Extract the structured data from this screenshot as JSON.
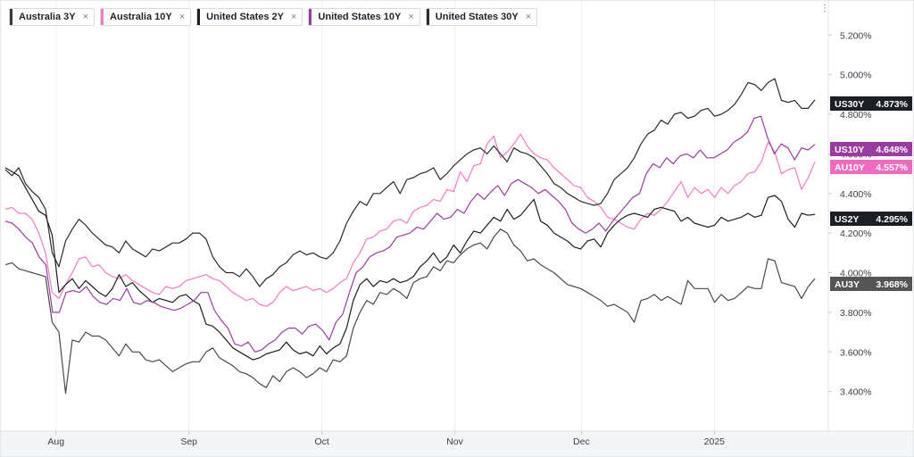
{
  "legend": [
    {
      "label": "Australia 3Y",
      "color": "#3a3a3a"
    },
    {
      "label": "Australia 10Y",
      "color": "#f07cc6"
    },
    {
      "label": "United States 2Y",
      "color": "#1e1e1e"
    },
    {
      "label": "United States 10Y",
      "color": "#9a3fa0"
    },
    {
      "label": "United States 30Y",
      "color": "#2b2b2b"
    }
  ],
  "legend_close_glyph": "×",
  "icons": {
    "legend_close": "close-icon",
    "menu": "vertical-dots-icon"
  },
  "chart_data": {
    "type": "line",
    "x_tick_labels": [
      "Aug",
      "Sep",
      "Oct",
      "Nov",
      "Dec",
      "2025"
    ],
    "x_tick_positions": [
      8,
      29,
      50,
      71,
      91,
      112
    ],
    "x_range": [
      0,
      130
    ],
    "ylim": [
      3.2,
      5.35
    ],
    "y_ticks": [
      3.4,
      3.6,
      3.8,
      4.0,
      4.2,
      4.4,
      4.6,
      4.8,
      5.0,
      5.2
    ],
    "y_tick_labels": [
      "3.400%",
      "3.600%",
      "3.800%",
      "4.000%",
      "4.200%",
      "4.400%",
      "4.600%",
      "4.800%",
      "5.000%",
      "5.200%"
    ],
    "grid": "vertical",
    "series": [
      {
        "name": "Australia 3Y",
        "tag": "AU3Y",
        "last": "3.968%",
        "color": "#4a4a4a",
        "tag_bg": "#555555",
        "values": [
          4.04,
          4.05,
          4.02,
          4.01,
          4.0,
          3.99,
          3.98,
          3.75,
          3.7,
          3.39,
          3.66,
          3.65,
          3.7,
          3.68,
          3.68,
          3.66,
          3.62,
          3.58,
          3.64,
          3.6,
          3.6,
          3.56,
          3.55,
          3.56,
          3.53,
          3.5,
          3.52,
          3.54,
          3.55,
          3.55,
          3.6,
          3.62,
          3.57,
          3.55,
          3.53,
          3.5,
          3.49,
          3.47,
          3.44,
          3.42,
          3.48,
          3.45,
          3.5,
          3.52,
          3.5,
          3.47,
          3.49,
          3.52,
          3.5,
          3.56,
          3.55,
          3.58,
          3.72,
          3.8,
          3.86,
          3.84,
          3.9,
          3.89,
          3.92,
          3.9,
          3.87,
          3.95,
          3.97,
          3.98,
          4.03,
          4.01,
          4.06,
          4.05,
          4.09,
          4.12,
          4.14,
          4.15,
          4.12,
          4.18,
          4.22,
          4.2,
          4.14,
          4.11,
          4.06,
          4.07,
          4.04,
          4.02,
          4.0,
          3.97,
          3.94,
          3.93,
          3.92,
          3.9,
          3.88,
          3.86,
          3.83,
          3.84,
          3.82,
          3.8,
          3.75,
          3.86,
          3.87,
          3.89,
          3.86,
          3.88,
          3.86,
          3.84,
          3.96,
          3.92,
          3.92,
          3.92,
          3.85,
          3.89,
          3.86,
          3.87,
          3.9,
          3.93,
          3.92,
          3.92,
          4.07,
          4.06,
          3.95,
          3.94,
          3.93,
          3.87,
          3.93,
          3.97
        ]
      },
      {
        "name": "Australia 10Y",
        "tag": "AU10Y",
        "last": "4.557%",
        "color": "#f07cc6",
        "tag_bg": "#f06abf",
        "values": [
          4.32,
          4.33,
          4.3,
          4.3,
          4.27,
          4.2,
          4.1,
          3.9,
          3.87,
          3.94,
          4.0,
          4.07,
          4.08,
          4.03,
          4.04,
          4.0,
          3.98,
          3.97,
          3.99,
          3.96,
          3.94,
          3.92,
          3.9,
          3.89,
          3.93,
          3.92,
          3.93,
          3.96,
          3.97,
          3.98,
          3.99,
          3.97,
          3.96,
          3.93,
          3.9,
          3.88,
          3.86,
          3.87,
          3.84,
          3.83,
          3.85,
          3.9,
          3.93,
          3.91,
          3.92,
          3.93,
          3.91,
          3.92,
          3.9,
          3.92,
          3.95,
          3.97,
          4.05,
          4.1,
          4.17,
          4.18,
          4.21,
          4.22,
          4.26,
          4.27,
          4.25,
          4.31,
          4.33,
          4.34,
          4.37,
          4.36,
          4.42,
          4.41,
          4.51,
          4.46,
          4.54,
          4.55,
          4.65,
          4.69,
          4.58,
          4.61,
          4.65,
          4.7,
          4.64,
          4.6,
          4.58,
          4.57,
          4.53,
          4.5,
          4.47,
          4.44,
          4.43,
          4.38,
          4.36,
          4.33,
          4.28,
          4.27,
          4.25,
          4.23,
          4.22,
          4.27,
          4.3,
          4.29,
          4.32,
          4.36,
          4.41,
          4.46,
          4.38,
          4.43,
          4.4,
          4.42,
          4.38,
          4.43,
          4.4,
          4.44,
          4.46,
          4.5,
          4.51,
          4.56,
          4.66,
          4.61,
          4.5,
          4.52,
          4.53,
          4.42,
          4.48,
          4.56
        ]
      },
      {
        "name": "United States 2Y",
        "tag": "US2Y",
        "last": "4.295%",
        "color": "#1e1e1e",
        "tag_bg": "#1b1e24",
        "values": [
          4.53,
          4.51,
          4.49,
          4.43,
          4.37,
          4.31,
          4.29,
          4.19,
          3.9,
          3.94,
          3.97,
          3.92,
          3.96,
          3.93,
          3.9,
          3.88,
          3.92,
          3.99,
          3.93,
          3.95,
          3.91,
          3.88,
          3.85,
          3.87,
          3.86,
          3.85,
          3.88,
          3.89,
          3.86,
          3.84,
          3.74,
          3.73,
          3.7,
          3.66,
          3.62,
          3.6,
          3.58,
          3.56,
          3.57,
          3.59,
          3.6,
          3.61,
          3.65,
          3.61,
          3.59,
          3.6,
          3.58,
          3.63,
          3.59,
          3.62,
          3.64,
          3.72,
          3.86,
          3.94,
          3.97,
          3.93,
          3.96,
          3.95,
          3.97,
          3.95,
          3.96,
          3.98,
          4.03,
          4.06,
          4.1,
          4.05,
          4.08,
          4.14,
          4.1,
          4.16,
          4.21,
          4.2,
          4.24,
          4.28,
          4.26,
          4.32,
          4.27,
          4.29,
          4.33,
          4.37,
          4.26,
          4.24,
          4.2,
          4.18,
          4.16,
          4.13,
          4.12,
          4.16,
          4.17,
          4.13,
          4.2,
          4.24,
          4.27,
          4.29,
          4.3,
          4.29,
          4.28,
          4.32,
          4.33,
          4.32,
          4.31,
          4.26,
          4.28,
          4.25,
          4.24,
          4.23,
          4.24,
          4.28,
          4.26,
          4.27,
          4.28,
          4.3,
          4.28,
          4.29,
          4.38,
          4.39,
          4.36,
          4.27,
          4.23,
          4.3,
          4.29,
          4.295
        ]
      },
      {
        "name": "United States 10Y",
        "tag": "US10Y",
        "last": "4.648%",
        "color": "#9a3fa0",
        "tag_bg": "#9b3a9f",
        "values": [
          4.26,
          4.25,
          4.22,
          4.18,
          4.15,
          4.08,
          4.04,
          3.8,
          3.8,
          3.9,
          3.91,
          3.9,
          3.93,
          3.88,
          3.85,
          3.84,
          3.87,
          3.86,
          3.92,
          3.85,
          3.84,
          3.86,
          3.85,
          3.83,
          3.82,
          3.81,
          3.82,
          3.84,
          3.86,
          3.9,
          3.9,
          3.81,
          3.76,
          3.72,
          3.64,
          3.63,
          3.65,
          3.6,
          3.61,
          3.64,
          3.66,
          3.7,
          3.72,
          3.72,
          3.69,
          3.73,
          3.74,
          3.71,
          3.66,
          3.75,
          3.79,
          3.9,
          4.0,
          4.03,
          4.08,
          4.1,
          4.11,
          4.13,
          4.18,
          4.19,
          4.2,
          4.23,
          4.22,
          4.26,
          4.3,
          4.27,
          4.28,
          4.32,
          4.3,
          4.36,
          4.4,
          4.37,
          4.41,
          4.44,
          4.39,
          4.45,
          4.47,
          4.45,
          4.43,
          4.4,
          4.42,
          4.39,
          4.36,
          4.32,
          4.25,
          4.22,
          4.2,
          4.22,
          4.25,
          4.21,
          4.26,
          4.3,
          4.34,
          4.38,
          4.4,
          4.5,
          4.55,
          4.53,
          4.58,
          4.55,
          4.59,
          4.6,
          4.58,
          4.62,
          4.58,
          4.58,
          4.6,
          4.62,
          4.66,
          4.68,
          4.71,
          4.78,
          4.79,
          4.68,
          4.6,
          4.65,
          4.63,
          4.57,
          4.63,
          4.62,
          4.648
        ]
      },
      {
        "name": "United States 30Y",
        "tag": "US30Y",
        "last": "4.873%",
        "color": "#2b2b2b",
        "tag_bg": "#1b1e24",
        "values": [
          4.52,
          4.49,
          4.53,
          4.45,
          4.41,
          4.38,
          4.32,
          4.1,
          4.03,
          4.16,
          4.22,
          4.27,
          4.24,
          4.2,
          4.17,
          4.14,
          4.13,
          4.1,
          4.16,
          4.12,
          4.1,
          4.08,
          4.12,
          4.11,
          4.13,
          4.15,
          4.15,
          4.17,
          4.2,
          4.2,
          4.17,
          4.08,
          4.03,
          4.0,
          4.0,
          3.98,
          4.02,
          3.98,
          3.93,
          3.97,
          3.99,
          4.03,
          4.05,
          4.09,
          4.11,
          4.09,
          4.1,
          4.08,
          4.07,
          4.1,
          4.16,
          4.25,
          4.31,
          4.36,
          4.34,
          4.4,
          4.4,
          4.43,
          4.46,
          4.4,
          4.47,
          4.48,
          4.5,
          4.51,
          4.53,
          4.47,
          4.5,
          4.54,
          4.57,
          4.6,
          4.62,
          4.63,
          4.6,
          4.64,
          4.6,
          4.56,
          4.63,
          4.61,
          4.6,
          4.58,
          4.54,
          4.5,
          4.45,
          4.43,
          4.4,
          4.38,
          4.36,
          4.35,
          4.34,
          4.35,
          4.4,
          4.47,
          4.5,
          4.53,
          4.58,
          4.65,
          4.7,
          4.72,
          4.77,
          4.75,
          4.8,
          4.81,
          4.78,
          4.79,
          4.82,
          4.83,
          4.79,
          4.8,
          4.82,
          4.85,
          4.9,
          4.96,
          4.95,
          4.92,
          4.96,
          4.98,
          4.87,
          4.86,
          4.87,
          4.83,
          4.83,
          4.873
        ]
      }
    ]
  }
}
